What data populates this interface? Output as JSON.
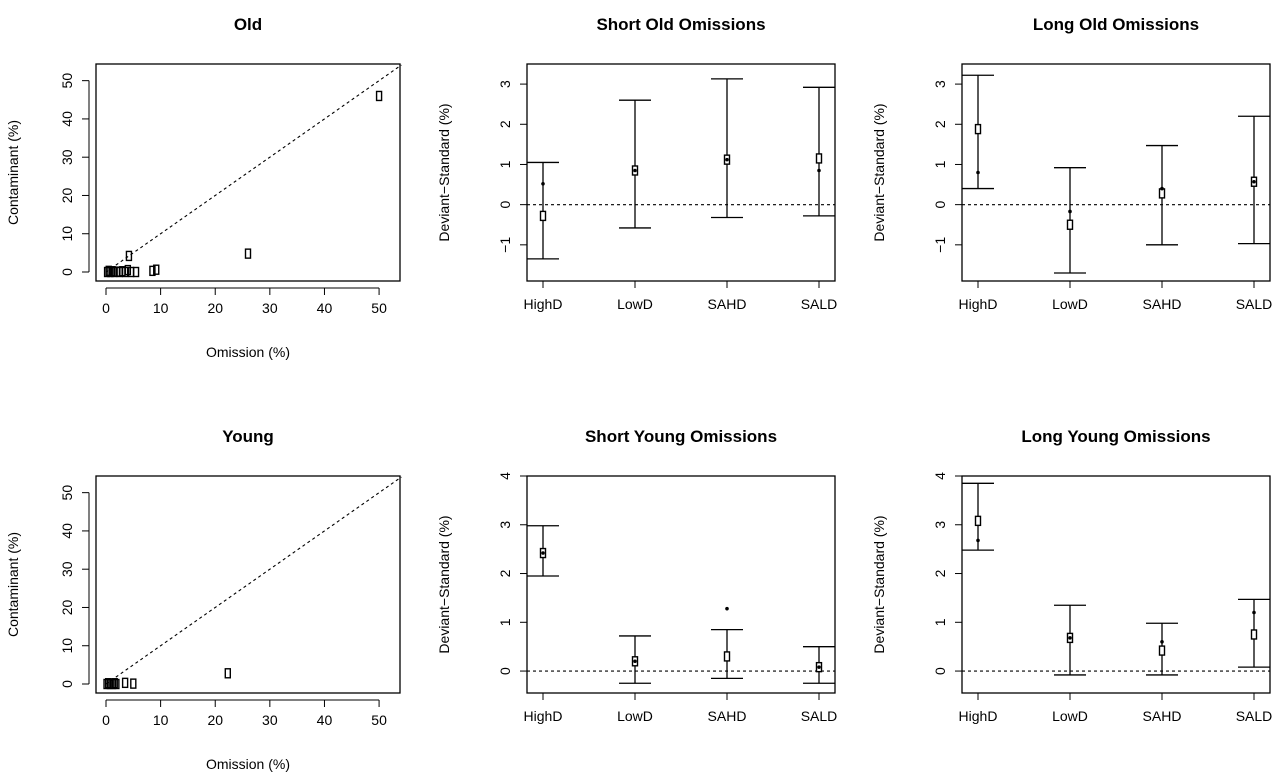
{
  "colors": {
    "ink": "#000000",
    "background": "#ffffff"
  },
  "chart_data": [
    {
      "type": "scatter",
      "title": "Old",
      "xlabel": "Omission (%)",
      "ylabel": "Contaminant (%)",
      "xlim": [
        0,
        52
      ],
      "ylim": [
        0,
        52
      ],
      "xticks": [
        "0",
        "10",
        "20",
        "30",
        "40",
        "50"
      ],
      "yticks": [
        "0",
        "10",
        "20",
        "30",
        "40",
        "50"
      ],
      "reference_line": "y = x",
      "points": [
        {
          "x": 0.2,
          "y": 0
        },
        {
          "x": 0.5,
          "y": 0.3
        },
        {
          "x": 0.8,
          "y": 0
        },
        {
          "x": 1.2,
          "y": 0.2
        },
        {
          "x": 1.5,
          "y": 0
        },
        {
          "x": 2.0,
          "y": 0.1
        },
        {
          "x": 2.5,
          "y": 0
        },
        {
          "x": 3.0,
          "y": 0.2
        },
        {
          "x": 3.5,
          "y": 0
        },
        {
          "x": 4.0,
          "y": 0.5
        },
        {
          "x": 4.2,
          "y": 4.2
        },
        {
          "x": 4.6,
          "y": 0
        },
        {
          "x": 5.5,
          "y": 0
        },
        {
          "x": 8.5,
          "y": 0.3
        },
        {
          "x": 9.2,
          "y": 0.6
        },
        {
          "x": 26,
          "y": 4.8
        },
        {
          "x": 50,
          "y": 46
        }
      ]
    },
    {
      "type": "errorbar",
      "title": "Short Old Omissions",
      "xlabel": "",
      "ylabel": "Deviant−Standard (%)",
      "categories": [
        "HighD",
        "LowD",
        "SAHD",
        "SALD"
      ],
      "ylim": [
        -1.9,
        3.5
      ],
      "yticks": [
        -1,
        0,
        1,
        2,
        3
      ],
      "ytick_labels": [
        "−1",
        "0",
        "1",
        "2",
        "3"
      ],
      "reference_line": "y = 0",
      "mean": [
        -0.28,
        0.85,
        1.12,
        1.15
      ],
      "dot": [
        0.52,
        0.85,
        1.12,
        0.85
      ],
      "lower": [
        -1.35,
        -0.58,
        -0.32,
        -0.28
      ],
      "upper": [
        1.05,
        2.6,
        3.13,
        2.92
      ]
    },
    {
      "type": "errorbar",
      "title": "Long Old Omissions",
      "xlabel": "",
      "ylabel": "Deviant−Standard (%)",
      "categories": [
        "HighD",
        "LowD",
        "SAHD",
        "SALD"
      ],
      "ylim": [
        -1.9,
        3.5
      ],
      "yticks": [
        -1,
        0,
        1,
        2,
        3
      ],
      "ytick_labels": [
        "−1",
        "0",
        "1",
        "2",
        "3"
      ],
      "reference_line": "y = 0",
      "mean": [
        1.88,
        -0.5,
        0.28,
        0.57
      ],
      "dot": [
        0.8,
        -0.17,
        0.4,
        0.57
      ],
      "lower": [
        0.4,
        -1.7,
        -1.0,
        -0.97
      ],
      "upper": [
        3.22,
        0.92,
        1.47,
        2.2
      ]
    },
    {
      "type": "scatter",
      "title": "Young",
      "xlabel": "Omission (%)",
      "ylabel": "Contaminant (%)",
      "xlim": [
        0,
        52
      ],
      "ylim": [
        0,
        52
      ],
      "xticks": [
        "0",
        "10",
        "20",
        "30",
        "40",
        "50"
      ],
      "yticks": [
        "0",
        "10",
        "20",
        "30",
        "40",
        "50"
      ],
      "reference_line": "y = x",
      "points": [
        {
          "x": 0.1,
          "y": 0
        },
        {
          "x": 0.4,
          "y": 0.2
        },
        {
          "x": 0.7,
          "y": 0
        },
        {
          "x": 1.0,
          "y": 0.1
        },
        {
          "x": 1.3,
          "y": 0
        },
        {
          "x": 1.6,
          "y": 0.2
        },
        {
          "x": 1.9,
          "y": 0
        },
        {
          "x": 3.5,
          "y": 0.3
        },
        {
          "x": 5.0,
          "y": 0.1
        },
        {
          "x": 22.3,
          "y": 2.8
        }
      ]
    },
    {
      "type": "errorbar",
      "title": "Short Young Omissions",
      "xlabel": "",
      "ylabel": "Deviant−Standard (%)",
      "categories": [
        "HighD",
        "LowD",
        "SAHD",
        "SALD"
      ],
      "ylim": [
        -0.45,
        4.0
      ],
      "yticks": [
        0,
        1,
        2,
        3,
        4
      ],
      "ytick_labels": [
        "0",
        "1",
        "2",
        "3",
        "4"
      ],
      "reference_line": "y = 0",
      "mean": [
        2.42,
        0.2,
        0.3,
        0.08
      ],
      "dot": [
        2.42,
        0.2,
        1.28,
        0.08
      ],
      "lower": [
        1.95,
        -0.25,
        -0.15,
        -0.25
      ],
      "upper": [
        2.98,
        0.72,
        0.85,
        0.5
      ]
    },
    {
      "type": "errorbar",
      "title": "Long Young Omissions",
      "xlabel": "",
      "ylabel": "Deviant−Standard (%)",
      "categories": [
        "HighD",
        "LowD",
        "SAHD",
        "SALD"
      ],
      "ylim": [
        -0.45,
        4.0
      ],
      "yticks": [
        0,
        1,
        2,
        3,
        4
      ],
      "ytick_labels": [
        "0",
        "1",
        "2",
        "3",
        "4"
      ],
      "reference_line": "y = 0",
      "mean": [
        3.08,
        0.68,
        0.42,
        0.75
      ],
      "dot": [
        2.68,
        0.68,
        0.6,
        1.2
      ],
      "lower": [
        2.48,
        -0.08,
        -0.08,
        0.08
      ],
      "upper": [
        3.85,
        1.35,
        0.98,
        1.47
      ]
    }
  ]
}
